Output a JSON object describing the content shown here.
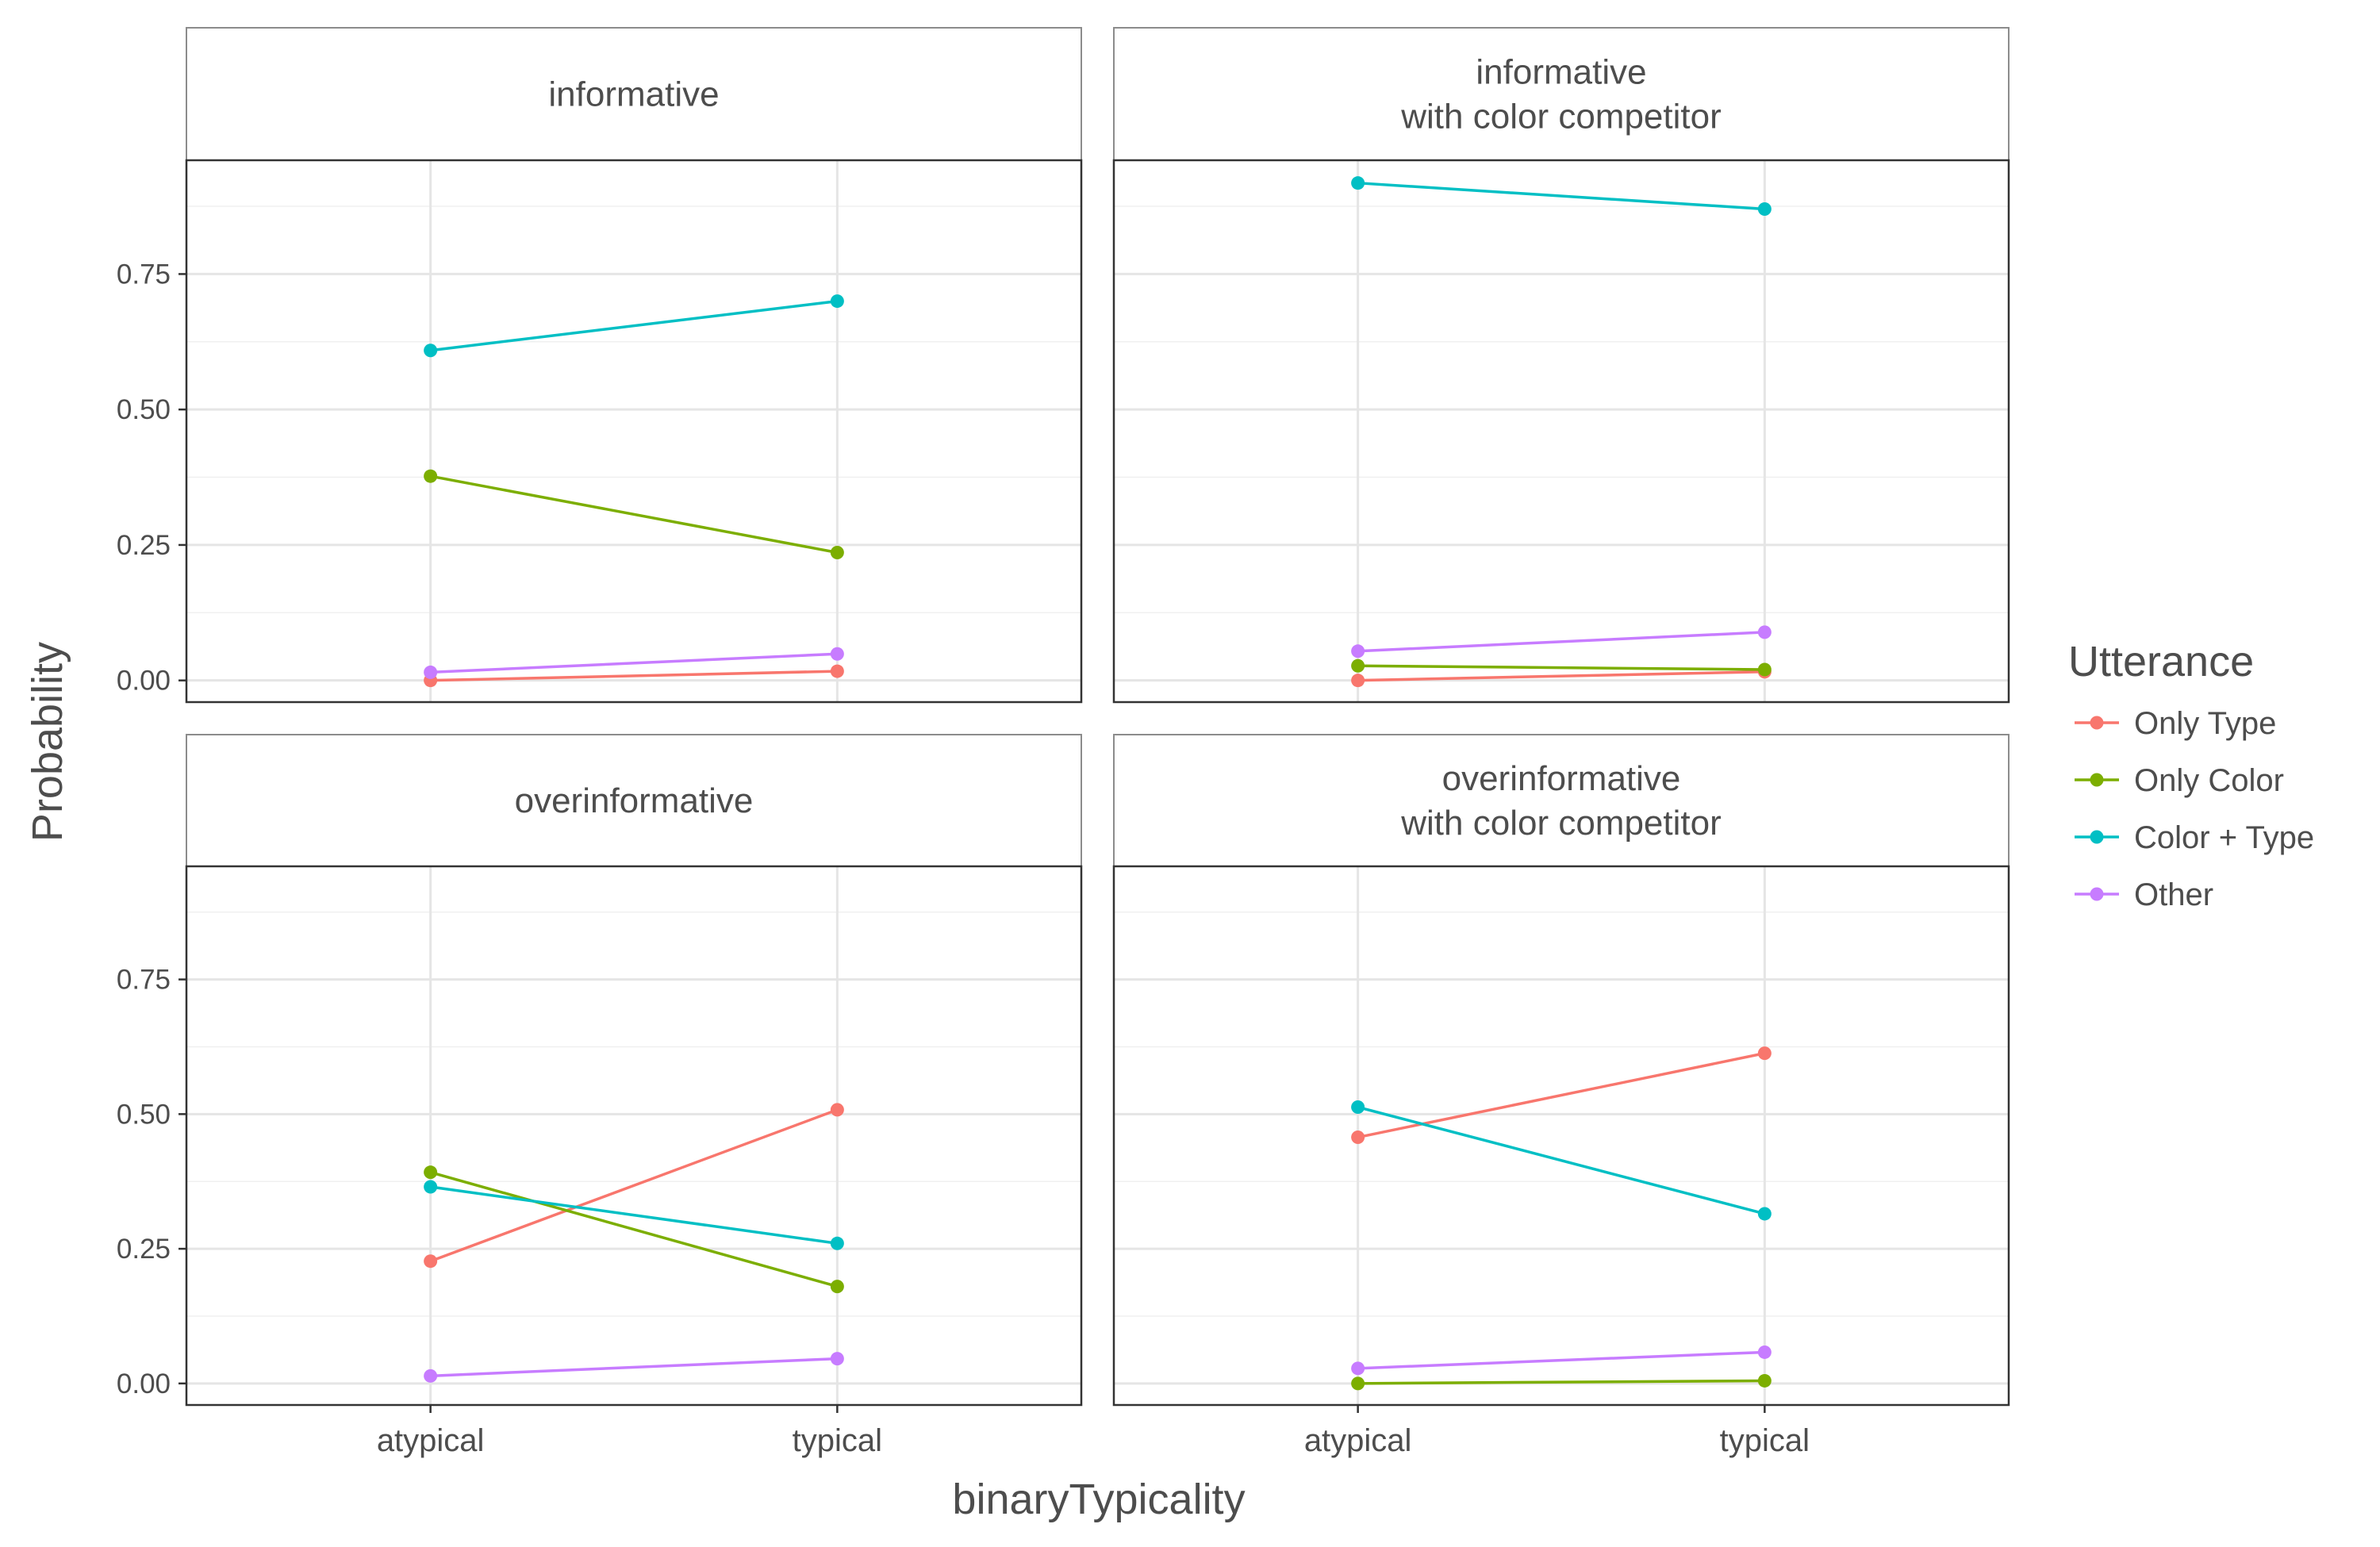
{
  "chart_data": {
    "type": "line",
    "xlabel": "binaryTypicality",
    "ylabel": "Probability",
    "categories": [
      "atypical",
      "typical"
    ],
    "ylim": [
      -0.04,
      0.96
    ],
    "y_ticks": [
      0.0,
      0.25,
      0.5,
      0.75
    ],
    "y_tick_labels": [
      "0.00",
      "0.25",
      "0.50",
      "0.75"
    ],
    "grid": true,
    "legend": {
      "title": "Utterance",
      "position": "right",
      "entries": [
        "Only Type",
        "Only Color",
        "Color + Type",
        "Other"
      ]
    },
    "series_colors": {
      "Only Type": "#F8766D",
      "Only Color": "#7CAE00",
      "Color + Type": "#00BFC4",
      "Other": "#C77CFF"
    },
    "panels": [
      {
        "title_lines": [
          "informative"
        ],
        "series": [
          {
            "name": "Only Type",
            "values": [
              0.0,
              0.017
            ]
          },
          {
            "name": "Only Color",
            "values": [
              0.377,
              0.236
            ]
          },
          {
            "name": "Color + Type",
            "values": [
              0.609,
              0.7
            ]
          },
          {
            "name": "Other",
            "values": [
              0.015,
              0.049
            ]
          }
        ]
      },
      {
        "title_lines": [
          "informative",
          "with color competitor"
        ],
        "series": [
          {
            "name": "Only Type",
            "values": [
              0.0,
              0.016
            ]
          },
          {
            "name": "Only Color",
            "values": [
              0.027,
              0.02
            ]
          },
          {
            "name": "Color + Type",
            "values": [
              0.918,
              0.87
            ]
          },
          {
            "name": "Other",
            "values": [
              0.054,
              0.089
            ]
          }
        ]
      },
      {
        "title_lines": [
          "overinformative"
        ],
        "series": [
          {
            "name": "Only Type",
            "values": [
              0.227,
              0.508
            ]
          },
          {
            "name": "Only Color",
            "values": [
              0.392,
              0.18
            ]
          },
          {
            "name": "Color + Type",
            "values": [
              0.365,
              0.26
            ]
          },
          {
            "name": "Other",
            "values": [
              0.014,
              0.046
            ]
          }
        ]
      },
      {
        "title_lines": [
          "overinformative",
          "with color competitor"
        ],
        "series": [
          {
            "name": "Only Type",
            "values": [
              0.457,
              0.613
            ]
          },
          {
            "name": "Only Color",
            "values": [
              0.0,
              0.005
            ]
          },
          {
            "name": "Color + Type",
            "values": [
              0.513,
              0.315
            ]
          },
          {
            "name": "Other",
            "values": [
              0.028,
              0.058
            ]
          }
        ]
      }
    ]
  }
}
